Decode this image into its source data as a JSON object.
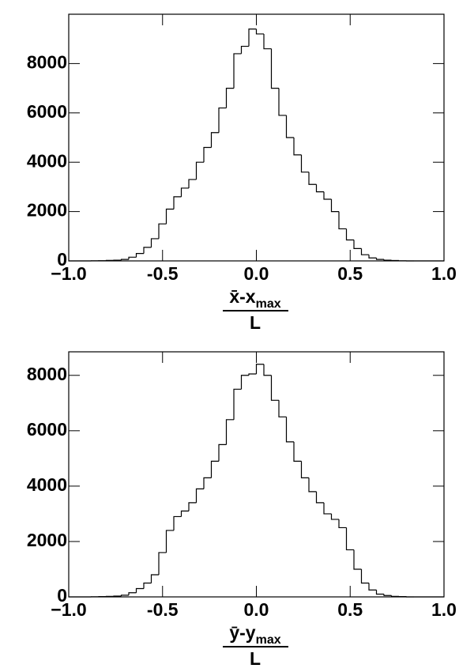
{
  "chart_data": [
    {
      "type": "histogram",
      "xlabel_numerator": "x̄-x",
      "xlabel_subscript": "max",
      "xlabel_denominator": "L",
      "bins": [
        -1,
        -0.96,
        -0.92,
        -0.88,
        -0.84,
        -0.8,
        -0.76,
        -0.72,
        -0.68,
        -0.64,
        -0.6,
        -0.56,
        -0.52,
        -0.48,
        -0.44,
        -0.4,
        -0.36,
        -0.32,
        -0.28,
        -0.24,
        -0.2,
        -0.16,
        -0.12,
        -0.08,
        -0.04,
        0,
        0.04,
        0.08,
        0.12,
        0.16,
        0.2,
        0.24,
        0.28,
        0.32,
        0.36,
        0.4,
        0.44,
        0.48,
        0.52,
        0.56,
        0.6,
        0.64,
        0.68,
        0.72,
        0.76,
        0.8,
        0.84,
        0.88,
        0.92,
        0.96,
        1
      ],
      "values": [
        0,
        0,
        0,
        5,
        10,
        20,
        30,
        60,
        150,
        300,
        550,
        900,
        1500,
        2100,
        2600,
        2950,
        3300,
        4000,
        4600,
        5200,
        6200,
        7000,
        8400,
        8700,
        9400,
        9200,
        8600,
        7000,
        5900,
        5000,
        4300,
        3600,
        3100,
        2800,
        2500,
        2000,
        1300,
        850,
        500,
        250,
        120,
        60,
        30,
        15,
        5,
        0,
        0,
        0,
        0,
        0
      ],
      "color": "#000000",
      "xlim": [
        -1,
        1
      ],
      "xticks": [
        {
          "value": -1,
          "label": "−1.0"
        },
        {
          "value": -0.5,
          "label": "-0.5"
        },
        {
          "value": 0,
          "label": "0.0"
        },
        {
          "value": 0.5,
          "label": "0.5"
        },
        {
          "value": 1,
          "label": "1.0"
        }
      ],
      "ylim": [
        0,
        10000
      ],
      "yticks": [
        0,
        2000,
        4000,
        6000,
        8000
      ]
    },
    {
      "type": "histogram",
      "xlabel_numerator": "ȳ-y",
      "xlabel_subscript": "max",
      "xlabel_denominator": "L",
      "bins": [
        -1,
        -0.96,
        -0.92,
        -0.88,
        -0.84,
        -0.8,
        -0.76,
        -0.72,
        -0.68,
        -0.64,
        -0.6,
        -0.56,
        -0.52,
        -0.48,
        -0.44,
        -0.4,
        -0.36,
        -0.32,
        -0.28,
        -0.24,
        -0.2,
        -0.16,
        -0.12,
        -0.08,
        -0.04,
        0,
        0.04,
        0.08,
        0.12,
        0.16,
        0.2,
        0.24,
        0.28,
        0.32,
        0.36,
        0.4,
        0.44,
        0.48,
        0.52,
        0.56,
        0.6,
        0.64,
        0.68,
        0.72,
        0.76,
        0.8,
        0.84,
        0.88,
        0.92,
        0.96,
        1
      ],
      "values": [
        0,
        0,
        0,
        5,
        10,
        20,
        30,
        60,
        150,
        300,
        500,
        800,
        1600,
        2400,
        2900,
        3100,
        3400,
        3900,
        4300,
        4900,
        5500,
        6400,
        7500,
        8000,
        8050,
        8400,
        8000,
        7100,
        6500,
        5600,
        4900,
        4300,
        3800,
        3400,
        3000,
        2800,
        2500,
        1700,
        1000,
        500,
        250,
        100,
        50,
        20,
        10,
        0,
        0,
        0,
        0,
        0
      ],
      "color": "#000000",
      "xlim": [
        -1,
        1
      ],
      "xticks": [
        {
          "value": -1,
          "label": "−1.0"
        },
        {
          "value": -0.5,
          "label": "-0.5"
        },
        {
          "value": 0,
          "label": "0.0"
        },
        {
          "value": 0.5,
          "label": "0.5"
        },
        {
          "value": 1,
          "label": "1.0"
        }
      ],
      "ylim": [
        0,
        8850
      ],
      "yticks": [
        0,
        2000,
        4000,
        6000,
        8000
      ]
    }
  ]
}
